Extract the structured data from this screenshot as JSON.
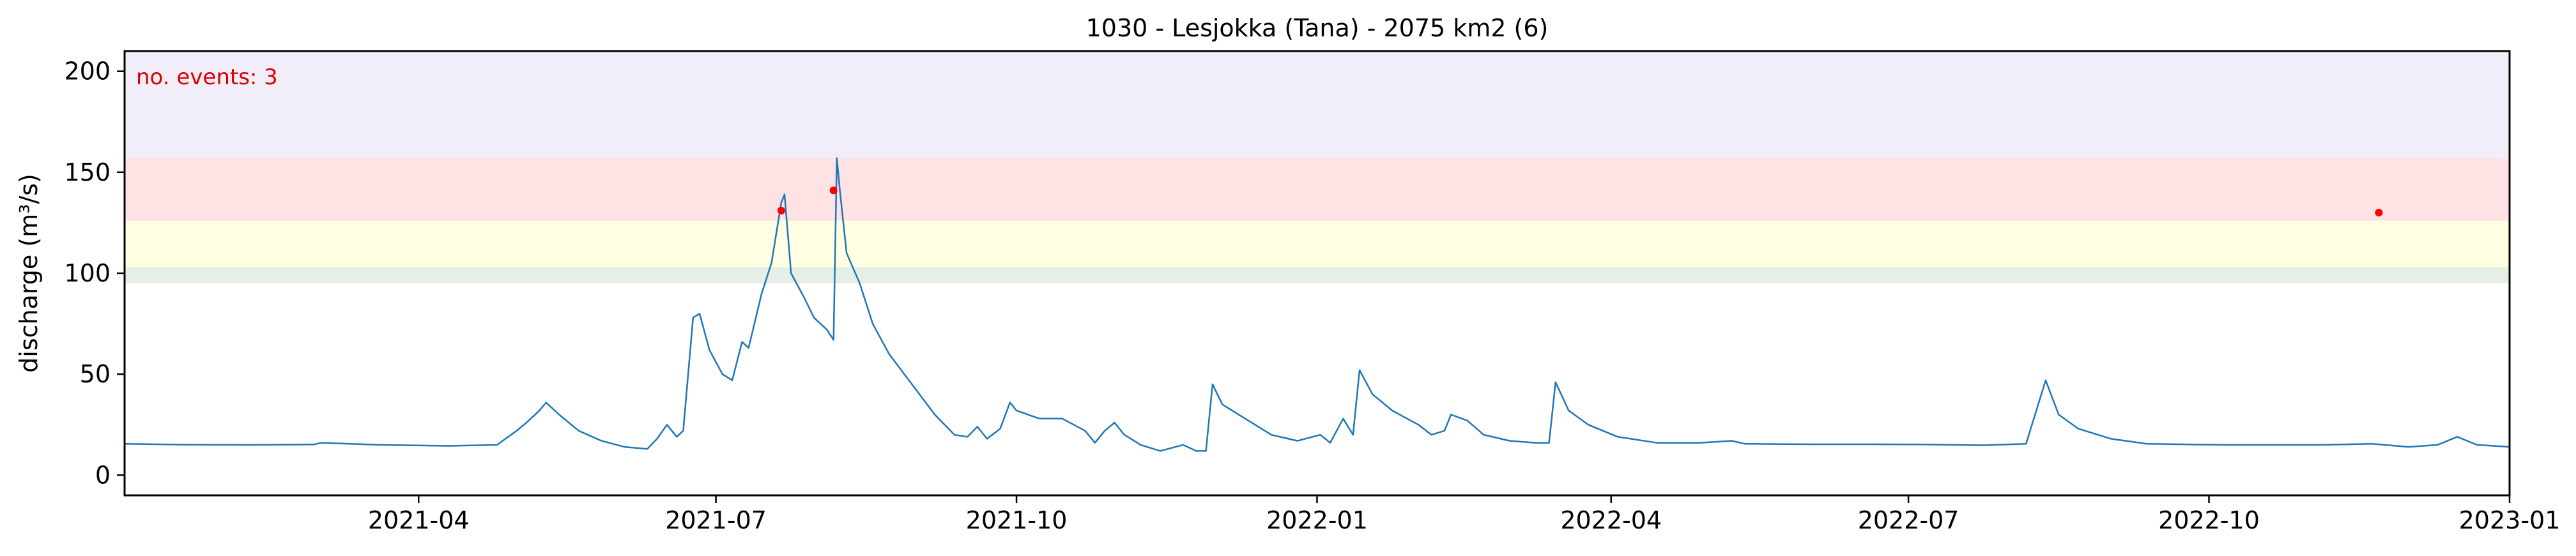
{
  "chart_data": {
    "type": "line",
    "title": "1030 - Lesjokka (Tana) - 2075 km2 (6)",
    "xlabel": "",
    "ylabel": "discharge (m³/s)",
    "x_range": [
      "2021-01-01",
      "2023-01-01"
    ],
    "ylim": [
      -10,
      210
    ],
    "x_ticks": [
      "2021-04",
      "2021-07",
      "2021-10",
      "2022-01",
      "2022-04",
      "2022-07",
      "2022-10",
      "2023-01"
    ],
    "y_ticks": [
      0,
      50,
      100,
      150,
      200
    ],
    "grid": false,
    "legend": "none",
    "annotation": {
      "text": "no. events: 3",
      "color": "#dd0000"
    },
    "threshold_bands": [
      {
        "from": 95,
        "to": 103,
        "color": "#e6efe6"
      },
      {
        "from": 103,
        "to": 126,
        "color": "#fefee2"
      },
      {
        "from": 126,
        "to": 157,
        "color": "#fee2e4"
      },
      {
        "from": 157,
        "to": 210,
        "color": "#f1eef9"
      }
    ],
    "series": [
      {
        "color": "#1f77b4",
        "points": [
          [
            "2021-01-01",
            15.5
          ],
          [
            "2021-01-20",
            15.1
          ],
          [
            "2021-02-10",
            15.0
          ],
          [
            "2021-02-28",
            15.2
          ],
          [
            "2021-03-02",
            16.0
          ],
          [
            "2021-03-20",
            15.0
          ],
          [
            "2021-04-10",
            14.5
          ],
          [
            "2021-04-25",
            15.0
          ],
          [
            "2021-05-01",
            22
          ],
          [
            "2021-05-04",
            26
          ],
          [
            "2021-05-08",
            32
          ],
          [
            "2021-05-10",
            36
          ],
          [
            "2021-05-14",
            30
          ],
          [
            "2021-05-20",
            22
          ],
          [
            "2021-05-27",
            17
          ],
          [
            "2021-06-03",
            14
          ],
          [
            "2021-06-10",
            13
          ],
          [
            "2021-06-13",
            18
          ],
          [
            "2021-06-16",
            25
          ],
          [
            "2021-06-19",
            19
          ],
          [
            "2021-06-21",
            22
          ],
          [
            "2021-06-24",
            78
          ],
          [
            "2021-06-26",
            80
          ],
          [
            "2021-06-29",
            62
          ],
          [
            "2021-07-03",
            50
          ],
          [
            "2021-07-06",
            47
          ],
          [
            "2021-07-09",
            66
          ],
          [
            "2021-07-11",
            63
          ],
          [
            "2021-07-15",
            90
          ],
          [
            "2021-07-18",
            105
          ],
          [
            "2021-07-21",
            135
          ],
          [
            "2021-07-22",
            139
          ],
          [
            "2021-07-24",
            100
          ],
          [
            "2021-07-28",
            88
          ],
          [
            "2021-07-31",
            78
          ],
          [
            "2021-08-04",
            72
          ],
          [
            "2021-08-06",
            67
          ],
          [
            "2021-08-07",
            157
          ],
          [
            "2021-08-08",
            140
          ],
          [
            "2021-08-10",
            110
          ],
          [
            "2021-08-14",
            95
          ],
          [
            "2021-08-18",
            75
          ],
          [
            "2021-08-23",
            60
          ],
          [
            "2021-08-30",
            45
          ],
          [
            "2021-09-06",
            30
          ],
          [
            "2021-09-12",
            20
          ],
          [
            "2021-09-16",
            19
          ],
          [
            "2021-09-19",
            24
          ],
          [
            "2021-09-22",
            18
          ],
          [
            "2021-09-26",
            23
          ],
          [
            "2021-09-29",
            36
          ],
          [
            "2021-10-01",
            32
          ],
          [
            "2021-10-08",
            28
          ],
          [
            "2021-10-15",
            28
          ],
          [
            "2021-10-22",
            22
          ],
          [
            "2021-10-25",
            16
          ],
          [
            "2021-10-28",
            22
          ],
          [
            "2021-10-31",
            26
          ],
          [
            "2021-11-03",
            20
          ],
          [
            "2021-11-08",
            15
          ],
          [
            "2021-11-14",
            12
          ],
          [
            "2021-11-21",
            15
          ],
          [
            "2021-11-25",
            12
          ],
          [
            "2021-11-28",
            12
          ],
          [
            "2021-11-30",
            45
          ],
          [
            "2021-12-03",
            35
          ],
          [
            "2021-12-10",
            28
          ],
          [
            "2021-12-18",
            20
          ],
          [
            "2021-12-26",
            17
          ],
          [
            "2022-01-02",
            20
          ],
          [
            "2022-01-05",
            16
          ],
          [
            "2022-01-09",
            28
          ],
          [
            "2022-01-12",
            20
          ],
          [
            "2022-01-14",
            52
          ],
          [
            "2022-01-18",
            40
          ],
          [
            "2022-01-24",
            32
          ],
          [
            "2022-02-01",
            25
          ],
          [
            "2022-02-05",
            20
          ],
          [
            "2022-02-09",
            22
          ],
          [
            "2022-02-11",
            30
          ],
          [
            "2022-02-16",
            27
          ],
          [
            "2022-02-21",
            20
          ],
          [
            "2022-03-01",
            17
          ],
          [
            "2022-03-09",
            16
          ],
          [
            "2022-03-13",
            16
          ],
          [
            "2022-03-15",
            46
          ],
          [
            "2022-03-19",
            32
          ],
          [
            "2022-03-25",
            25
          ],
          [
            "2022-04-03",
            19
          ],
          [
            "2022-04-15",
            16
          ],
          [
            "2022-04-28",
            16
          ],
          [
            "2022-05-08",
            17
          ],
          [
            "2022-05-12",
            15.5
          ],
          [
            "2022-06-03",
            15.3
          ],
          [
            "2022-06-20",
            15.3
          ],
          [
            "2022-07-05",
            15.2
          ],
          [
            "2022-07-24",
            14.8
          ],
          [
            "2022-08-06",
            15.5
          ],
          [
            "2022-08-12",
            47
          ],
          [
            "2022-08-16",
            30
          ],
          [
            "2022-08-22",
            23
          ],
          [
            "2022-09-01",
            18
          ],
          [
            "2022-09-12",
            15.5
          ],
          [
            "2022-10-05",
            15
          ],
          [
            "2022-10-25",
            15
          ],
          [
            "2022-11-05",
            15
          ],
          [
            "2022-11-20",
            15.5
          ],
          [
            "2022-12-01",
            14
          ],
          [
            "2022-12-10",
            15
          ],
          [
            "2022-12-16",
            19
          ],
          [
            "2022-12-22",
            15
          ],
          [
            "2023-01-01",
            14
          ]
        ]
      }
    ],
    "events": [
      {
        "x": "2021-07-21",
        "y": 131
      },
      {
        "x": "2021-08-06",
        "y": 141
      },
      {
        "x": "2022-11-22",
        "y": 130
      }
    ]
  }
}
